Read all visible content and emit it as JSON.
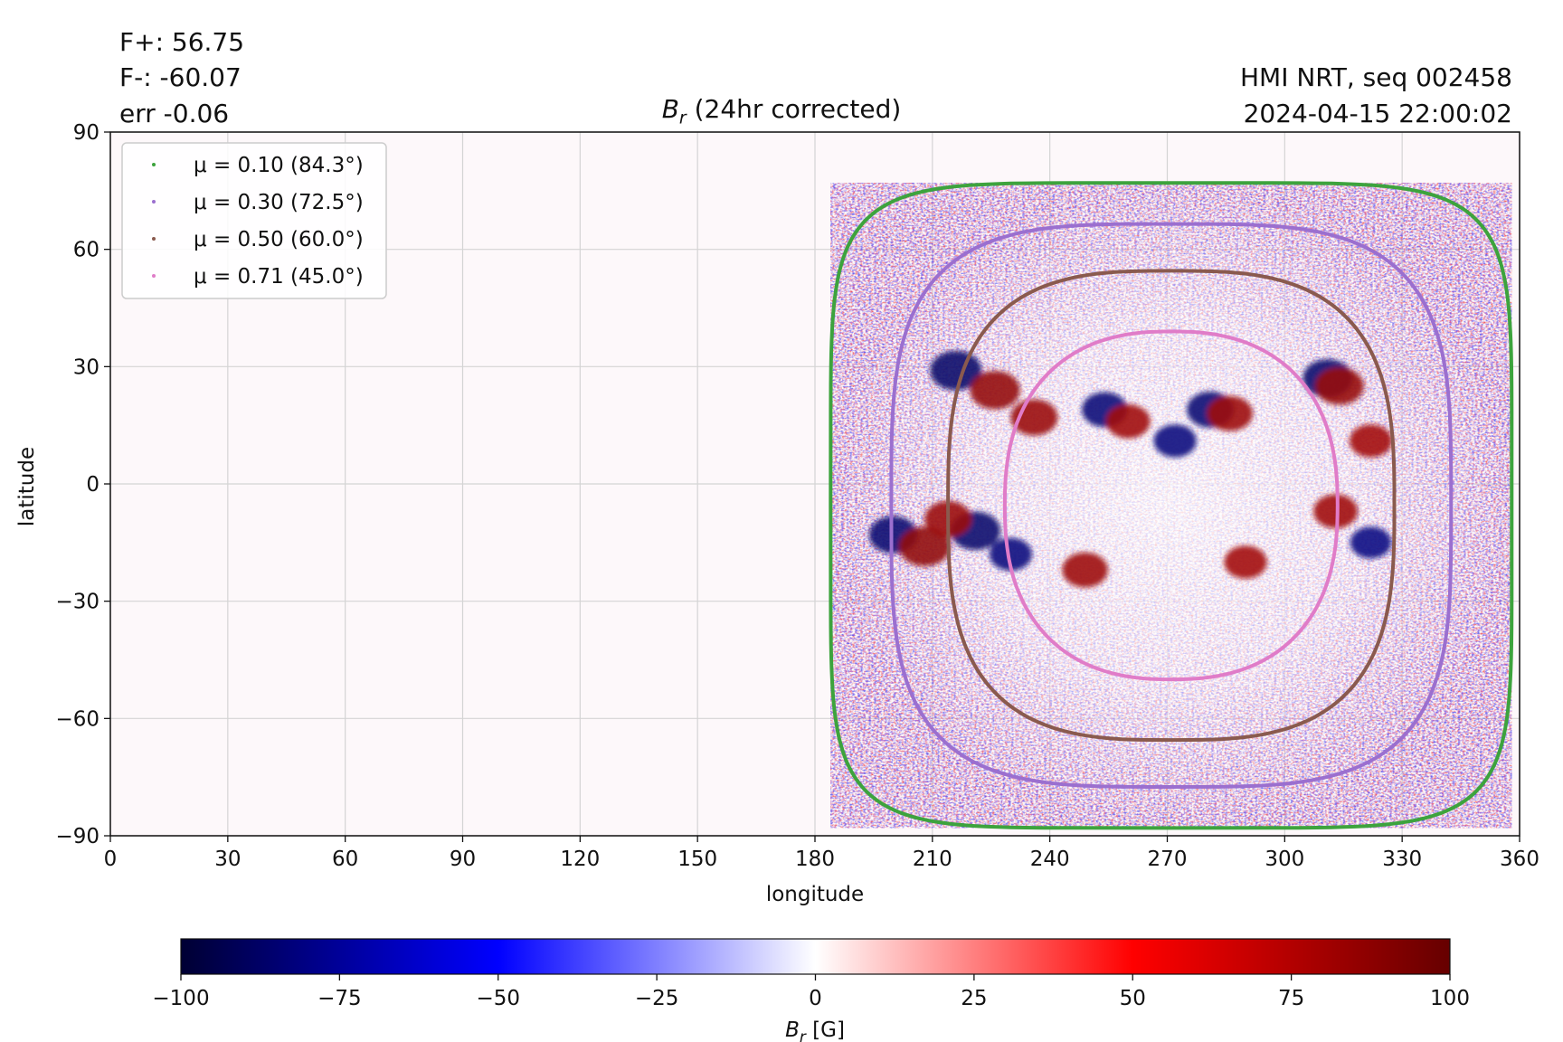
{
  "header": {
    "flux_pos": "F+: 56.75",
    "flux_neg": "F-: -60.07",
    "err": "err -0.06",
    "source": "HMI NRT, seq 002458",
    "datetime": "2024-04-15 22:00:02",
    "title_main": "B",
    "title_sub": "r",
    "title_rest": " (24hr corrected)"
  },
  "chart_data": {
    "type": "heatmap",
    "xlabel": "longitude",
    "ylabel": "latitude",
    "xlim": [
      0,
      360
    ],
    "ylim": [
      -90,
      90
    ],
    "xticks": [
      0,
      30,
      60,
      90,
      120,
      150,
      180,
      210,
      240,
      270,
      300,
      330,
      360
    ],
    "yticks": [
      90,
      60,
      30,
      0,
      -30,
      -60,
      -90
    ],
    "ytick_labels": [
      "90",
      "60",
      "30",
      "0",
      "−30",
      "−60",
      "−90"
    ],
    "grid": true,
    "legend_placement": "upper-left",
    "disk_center_longitude": 271,
    "disk_center_latitude": -5.5,
    "contours": [
      {
        "name": "μ = 0.10 (84.3°)",
        "color": "#3da33d",
        "half_width_deg": 87,
        "half_height_deg": 82.5
      },
      {
        "name": "μ = 0.30 (72.5°)",
        "color": "#9b6fcf",
        "half_width_deg": 71.5,
        "half_height_deg": 72
      },
      {
        "name": "μ = 0.50 (60.0°)",
        "color": "#8a5a4e",
        "half_width_deg": 57,
        "half_height_deg": 60
      },
      {
        "name": "μ = 0.71 (45.0°)",
        "color": "#e07cc8",
        "half_width_deg": 42.5,
        "half_height_deg": 44.5
      }
    ],
    "active_regions": [
      {
        "lon": 216,
        "lat": 29,
        "b": -90
      },
      {
        "lon": 226,
        "lat": 24,
        "b": 85
      },
      {
        "lon": 236,
        "lat": 17,
        "b": 75
      },
      {
        "lon": 254,
        "lat": 19,
        "b": -70
      },
      {
        "lon": 260,
        "lat": 16,
        "b": 65
      },
      {
        "lon": 281,
        "lat": 19,
        "b": -75
      },
      {
        "lon": 286,
        "lat": 18,
        "b": 70
      },
      {
        "lon": 272,
        "lat": 11,
        "b": -60
      },
      {
        "lon": 311,
        "lat": 27,
        "b": -85
      },
      {
        "lon": 314,
        "lat": 25,
        "b": 80
      },
      {
        "lon": 322,
        "lat": 11,
        "b": 60
      },
      {
        "lon": 200,
        "lat": -13,
        "b": -80
      },
      {
        "lon": 208,
        "lat": -16,
        "b": 90
      },
      {
        "lon": 221,
        "lat": -12,
        "b": -85
      },
      {
        "lon": 214,
        "lat": -9,
        "b": 75
      },
      {
        "lon": 230,
        "lat": -18,
        "b": -60
      },
      {
        "lon": 249,
        "lat": -22,
        "b": 70
      },
      {
        "lon": 290,
        "lat": -20,
        "b": 60
      },
      {
        "lon": 313,
        "lat": -7,
        "b": 65
      },
      {
        "lon": 322,
        "lat": -15,
        "b": -55
      }
    ],
    "colorbar": {
      "label_main": "B",
      "label_sub": "r",
      "label_unit": " [G]",
      "range": [
        -100,
        100
      ],
      "ticks": [
        -100,
        -75,
        -50,
        -25,
        0,
        25,
        50,
        75,
        100
      ],
      "tick_labels": [
        "−100",
        "−75",
        "−50",
        "−25",
        "0",
        "25",
        "50",
        "75",
        "100"
      ],
      "colors": [
        "#000033",
        "#0000ff",
        "#ffffff",
        "#ff0000",
        "#660000"
      ]
    }
  }
}
